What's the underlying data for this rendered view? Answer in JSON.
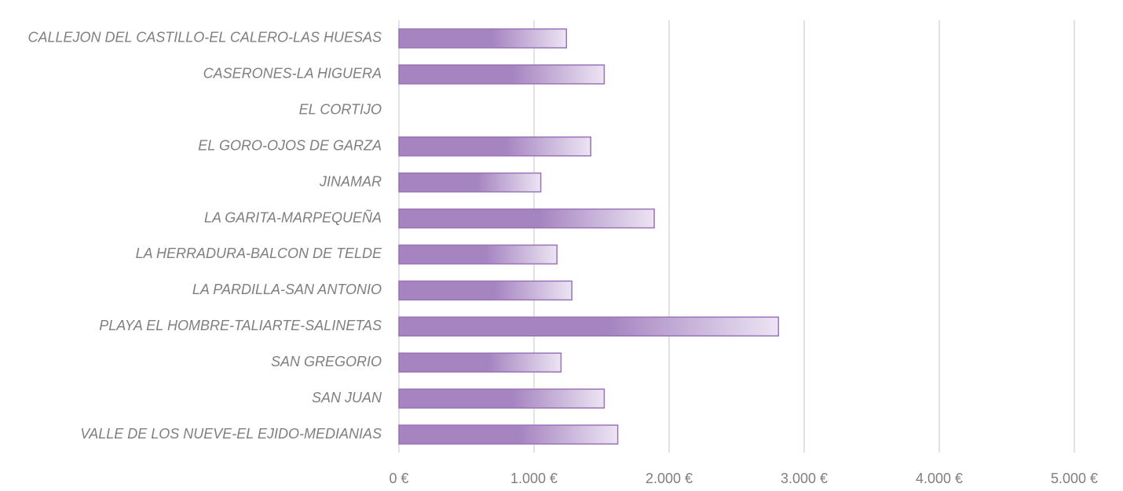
{
  "chart_data": {
    "type": "bar",
    "orientation": "horizontal",
    "categories": [
      "CALLEJON DEL CASTILLO-EL CALERO-LAS HUESAS",
      "CASERONES-LA HIGUERA",
      "EL CORTIJO",
      "EL GORO-OJOS DE GARZA",
      "JINAMAR",
      "LA GARITA-MARPEQUEÑA",
      "LA HERRADURA-BALCON DE TELDE",
      "LA PARDILLA-SAN ANTONIO",
      "PLAYA EL HOMBRE-TALIARTE-SALINETAS",
      "SAN GREGORIO",
      "SAN JUAN",
      "VALLE DE LOS NUEVE-EL EJIDO-MEDIANIAS"
    ],
    "values": [
      1240,
      1520,
      0,
      1420,
      1050,
      1890,
      1170,
      1280,
      2810,
      1200,
      1520,
      1620
    ],
    "color": "#a584c0",
    "xlim": [
      0,
      5000
    ],
    "xticks": [
      {
        "value": 0,
        "label": "0 €"
      },
      {
        "value": 1000,
        "label": "1.000 €"
      },
      {
        "value": 2000,
        "label": "2.000 €"
      },
      {
        "value": 3000,
        "label": "3.000 €"
      },
      {
        "value": 4000,
        "label": "4.000 €"
      },
      {
        "value": 5000,
        "label": "5.000 €"
      }
    ],
    "grid": true
  }
}
